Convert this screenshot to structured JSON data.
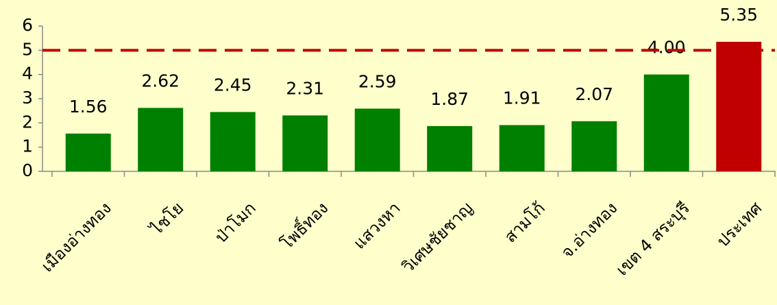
{
  "chart_data": {
    "type": "bar",
    "categories": [
      "เมืองอ่างทอง",
      "ไชโย",
      "ป่าโมก",
      "โพธิ์ทอง",
      "แสวงหา",
      "วิเศษชัยชาญ",
      "สามโก้",
      "จ.อ่างทอง",
      "เขต 4 สระบุรี",
      "ประเทศ"
    ],
    "values": [
      1.56,
      2.62,
      2.45,
      2.31,
      2.59,
      1.87,
      1.91,
      2.07,
      4.0,
      5.35
    ],
    "value_labels": [
      "1.56",
      "2.62",
      "2.45",
      "2.31",
      "2.59",
      "1.87",
      "1.91",
      "2.07",
      "4.00",
      "5.35"
    ],
    "colors": [
      "#008000",
      "#008000",
      "#008000",
      "#008000",
      "#008000",
      "#008000",
      "#008000",
      "#008000",
      "#008000",
      "#c00000"
    ],
    "ylim": [
      0,
      6
    ],
    "yticks": [
      0,
      1,
      2,
      3,
      4,
      5,
      6
    ],
    "grid": false,
    "reference_line": {
      "value": 5,
      "color": "#c00000"
    }
  }
}
